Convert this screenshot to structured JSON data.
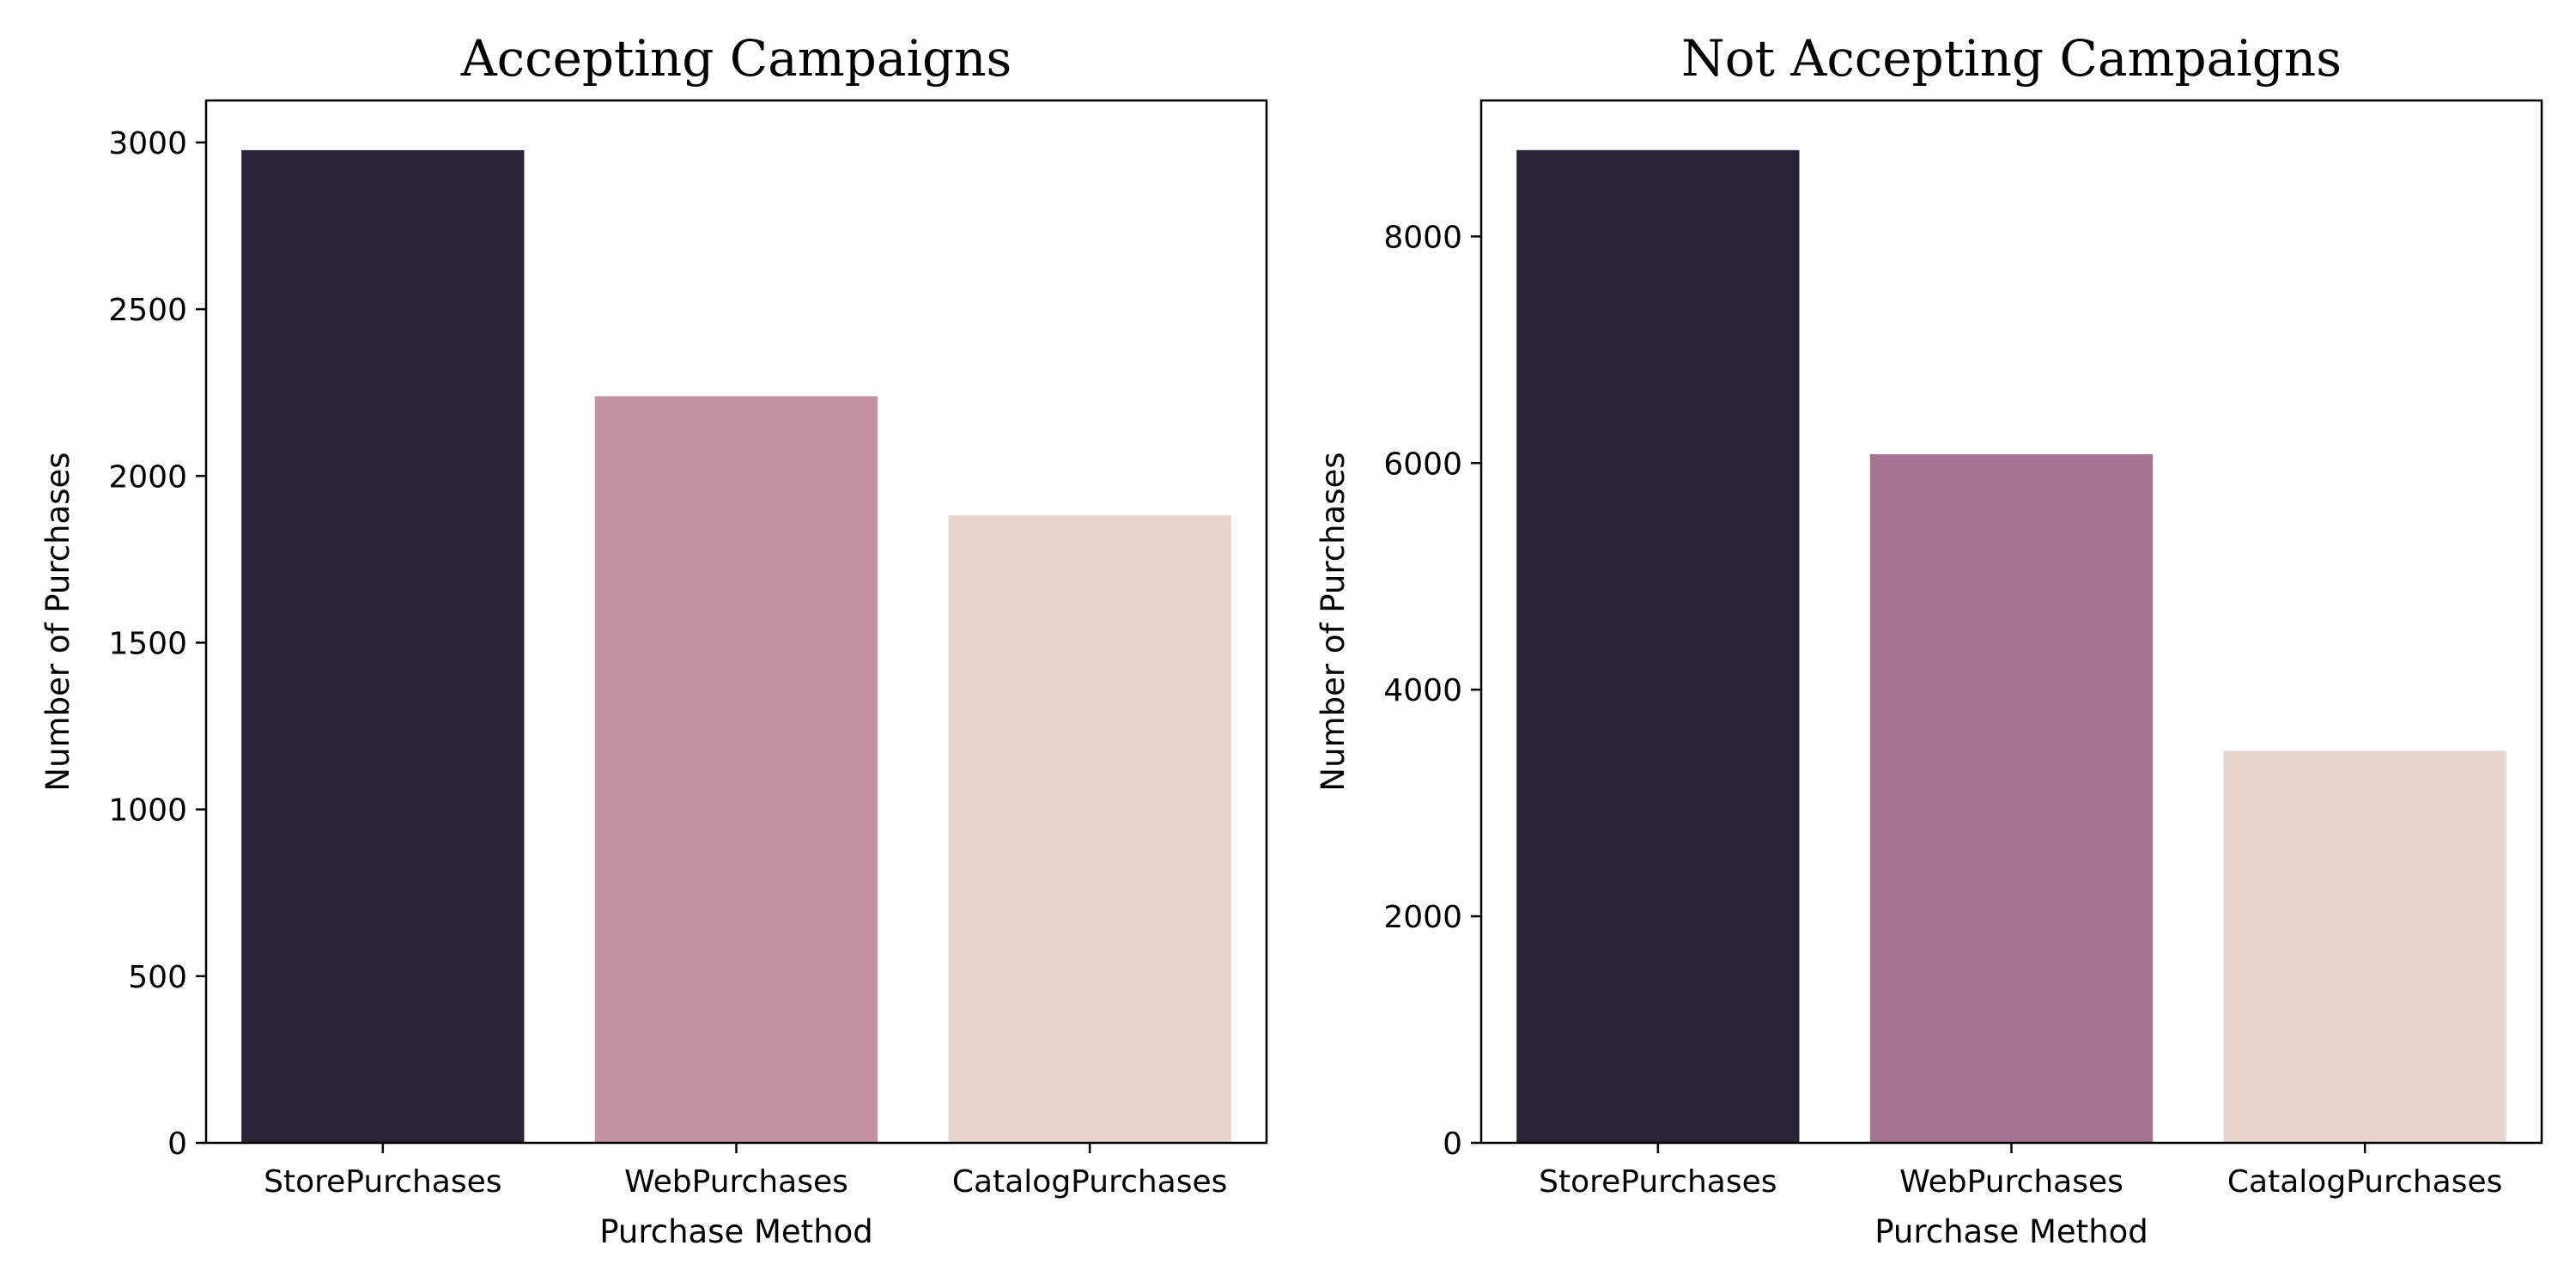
{
  "chart_data": [
    {
      "type": "bar",
      "title": "Accepting Campaigns",
      "xlabel": "Purchase Method",
      "ylabel": "Number of Purchases",
      "categories": [
        "StorePurchases",
        "WebPurchases",
        "CatalogPurchases"
      ],
      "values": [
        2977,
        2239,
        1882
      ],
      "colors": [
        "#2d2339",
        "#c292a1",
        "#e8d5d0"
      ],
      "ylim": [
        0,
        3126
      ],
      "yticks": [
        0,
        500,
        1000,
        1500,
        2000,
        2500,
        3000
      ],
      "grid": false
    },
    {
      "type": "bar",
      "title": "Not Accepting Campaigns",
      "xlabel": "Purchase Method",
      "ylabel": "Number of Purchases",
      "categories": [
        "StorePurchases",
        "WebPurchases",
        "CatalogPurchases"
      ],
      "values": [
        8762,
        6078,
        3460
      ],
      "colors": [
        "#2d2339",
        "#a47490",
        "#e8d5d0"
      ],
      "ylim": [
        0,
        9200
      ],
      "yticks": [
        0,
        2000,
        4000,
        6000,
        8000
      ],
      "grid": false
    }
  ]
}
